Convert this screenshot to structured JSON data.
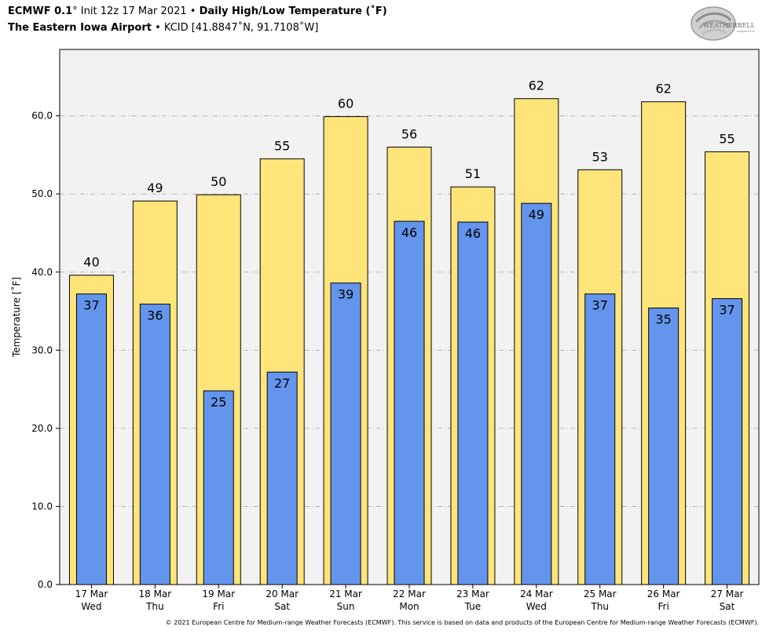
{
  "header": {
    "model": "ECMWF 0.1",
    "deg": "°",
    "init": "Init 12z 17 Mar 2021",
    "bullet": "•",
    "product": "Daily High/Low Temperature (˚F)",
    "station": "The Eastern Iowa Airport",
    "station_detail": "KCID [41.8847˚N, 91.7108˚W]"
  },
  "logo": {
    "text_main": "WEATHERBELL",
    "text_sub": "Analytics LLC"
  },
  "footer": "© 2021 European Centre for Medium-range Weather Forecasts (ECMWF). This service is based on data and products of the European Centre for Medium-range Weather Forecasts (ECMWF).",
  "colors": {
    "high": "#ffe47a",
    "low": "#6495ed",
    "plot_bg": "#f2f2f2",
    "grid": "#b5b5b5"
  },
  "chart_data": {
    "type": "bar",
    "ylabel": "Temperature [˚F]",
    "ylim": [
      0,
      68.5
    ],
    "yticks": [
      0,
      10,
      20,
      30,
      40,
      50,
      60
    ],
    "ytick_labels": [
      "0.0",
      "10.0",
      "20.0",
      "30.0",
      "40.0",
      "50.0",
      "60.0"
    ],
    "grid": true,
    "categories": [
      [
        "17 Mar",
        "Wed"
      ],
      [
        "18 Mar",
        "Thu"
      ],
      [
        "19 Mar",
        "Fri"
      ],
      [
        "20 Mar",
        "Sat"
      ],
      [
        "21 Mar",
        "Sun"
      ],
      [
        "22 Mar",
        "Mon"
      ],
      [
        "23 Mar",
        "Tue"
      ],
      [
        "24 Mar",
        "Wed"
      ],
      [
        "25 Mar",
        "Thu"
      ],
      [
        "26 Mar",
        "Fri"
      ],
      [
        "27 Mar",
        "Sat"
      ]
    ],
    "series": [
      {
        "values": [
          39.6,
          49.1,
          49.9,
          54.5,
          59.9,
          56.0,
          50.9,
          62.2,
          53.1,
          61.8,
          55.4
        ],
        "labels": [
          "40",
          "49",
          "50",
          "55",
          "60",
          "56",
          "51",
          "62",
          "53",
          "62",
          "55"
        ]
      },
      {
        "values": [
          37.2,
          35.9,
          24.8,
          27.2,
          38.6,
          46.5,
          46.4,
          48.8,
          37.2,
          35.4,
          36.6
        ],
        "labels": [
          "37",
          "36",
          "25",
          "27",
          "39",
          "46",
          "46",
          "49",
          "37",
          "35",
          "37"
        ]
      }
    ]
  }
}
